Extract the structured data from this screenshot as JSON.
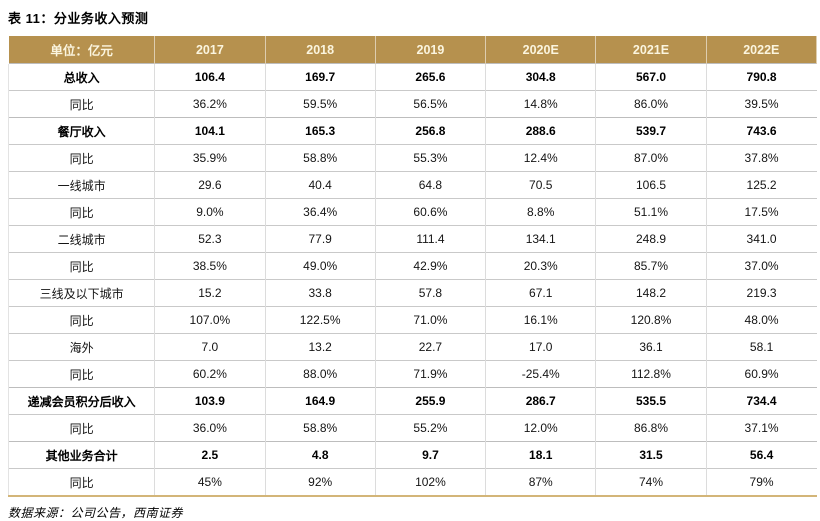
{
  "title": "表 11：分业务收入预测",
  "table": {
    "unit_header": "单位：亿元",
    "columns": [
      "2017",
      "2018",
      "2019",
      "2020E",
      "2021E",
      "2022E"
    ],
    "rows": [
      {
        "label": "总收入",
        "bold": true,
        "values": [
          "106.4",
          "169.7",
          "265.6",
          "304.8",
          "567.0",
          "790.8"
        ]
      },
      {
        "label": "同比",
        "bold": false,
        "values": [
          "36.2%",
          "59.5%",
          "56.5%",
          "14.8%",
          "86.0%",
          "39.5%"
        ]
      },
      {
        "label": "餐厅收入",
        "bold": true,
        "values": [
          "104.1",
          "165.3",
          "256.8",
          "288.6",
          "539.7",
          "743.6"
        ]
      },
      {
        "label": "同比",
        "bold": false,
        "values": [
          "35.9%",
          "58.8%",
          "55.3%",
          "12.4%",
          "87.0%",
          "37.8%"
        ]
      },
      {
        "label": "一线城市",
        "bold": false,
        "values": [
          "29.6",
          "40.4",
          "64.8",
          "70.5",
          "106.5",
          "125.2"
        ]
      },
      {
        "label": "同比",
        "bold": false,
        "values": [
          "9.0%",
          "36.4%",
          "60.6%",
          "8.8%",
          "51.1%",
          "17.5%"
        ]
      },
      {
        "label": "二线城市",
        "bold": false,
        "values": [
          "52.3",
          "77.9",
          "111.4",
          "134.1",
          "248.9",
          "341.0"
        ]
      },
      {
        "label": "同比",
        "bold": false,
        "values": [
          "38.5%",
          "49.0%",
          "42.9%",
          "20.3%",
          "85.7%",
          "37.0%"
        ]
      },
      {
        "label": "三线及以下城市",
        "bold": false,
        "values": [
          "15.2",
          "33.8",
          "57.8",
          "67.1",
          "148.2",
          "219.3"
        ]
      },
      {
        "label": "同比",
        "bold": false,
        "values": [
          "107.0%",
          "122.5%",
          "71.0%",
          "16.1%",
          "120.8%",
          "48.0%"
        ]
      },
      {
        "label": "海外",
        "bold": false,
        "values": [
          "7.0",
          "13.2",
          "22.7",
          "17.0",
          "36.1",
          "58.1"
        ]
      },
      {
        "label": "同比",
        "bold": false,
        "values": [
          "60.2%",
          "88.0%",
          "71.9%",
          "-25.4%",
          "112.8%",
          "60.9%"
        ]
      },
      {
        "label": "递减会员积分后收入",
        "bold": true,
        "values": [
          "103.9",
          "164.9",
          "255.9",
          "286.7",
          "535.5",
          "734.4"
        ]
      },
      {
        "label": "同比",
        "bold": false,
        "values": [
          "36.0%",
          "58.8%",
          "55.2%",
          "12.0%",
          "86.8%",
          "37.1%"
        ]
      },
      {
        "label": "其他业务合计",
        "bold": true,
        "values": [
          "2.5",
          "4.8",
          "9.7",
          "18.1",
          "31.5",
          "56.4"
        ]
      },
      {
        "label": "同比",
        "bold": false,
        "values": [
          "45%",
          "92%",
          "102%",
          "87%",
          "74%",
          "79%"
        ]
      }
    ]
  },
  "source": "数据来源：公司公告，西南证券",
  "colors": {
    "header_bg": "#B6914E",
    "header_text": "#FBF5DF",
    "table_bottom_border": "#D3B578",
    "row_border": "#C9C9C9"
  }
}
